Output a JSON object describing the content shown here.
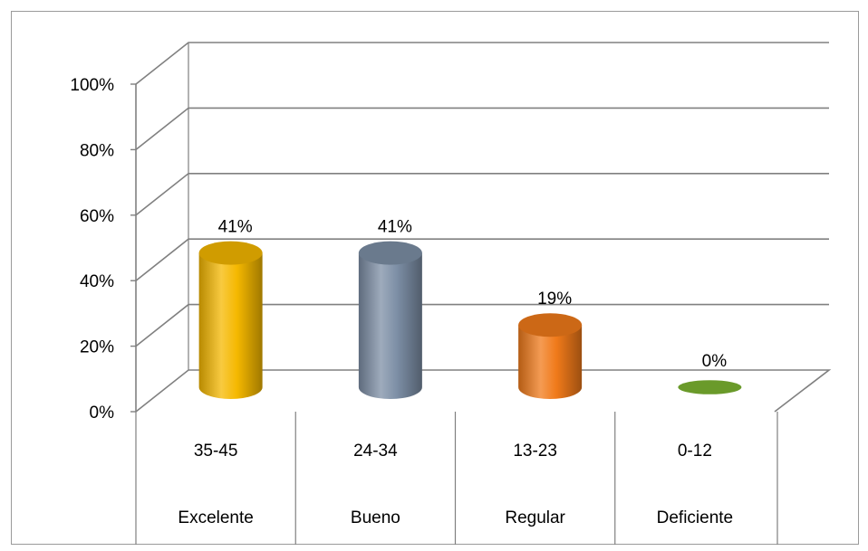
{
  "chart_data": {
    "type": "bar",
    "style": "3d-cylinder",
    "title": "",
    "xlabel": "",
    "ylabel": "",
    "ylim": [
      0,
      100
    ],
    "yticks": [
      "0%",
      "20%",
      "40%",
      "60%",
      "80%",
      "100%"
    ],
    "grid": true,
    "legend": "none",
    "categories": [
      {
        "range": "35-45",
        "label": "Excelente"
      },
      {
        "range": "24-34",
        "label": "Bueno"
      },
      {
        "range": "13-23",
        "label": "Regular"
      },
      {
        "range": "0-12",
        "label": "Deficiente"
      }
    ],
    "values": [
      41,
      41,
      19,
      0
    ],
    "data_labels": [
      "41%",
      "41%",
      "19%",
      "0%"
    ],
    "colors": [
      "#f5b800",
      "#7d8fa6",
      "#f07a1a",
      "#6a9a2a"
    ]
  }
}
